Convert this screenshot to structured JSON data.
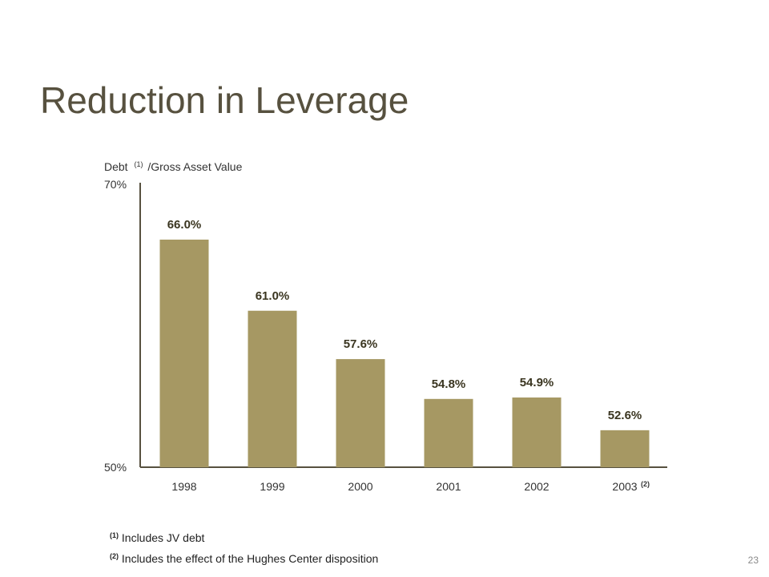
{
  "slide": {
    "title": "Reduction in Leverage",
    "page_number": "23"
  },
  "footnotes": [
    {
      "marker": "(1)",
      "text": "Includes JV debt"
    },
    {
      "marker": "(2)",
      "text": "Includes the effect of the Hughes Center disposition"
    }
  ],
  "colors": {
    "bar": "#a69863",
    "title": "#57513f",
    "axis": "#57513f"
  },
  "chart_data": {
    "type": "bar",
    "title": "",
    "ylabel": {
      "before": "Debt",
      "marker": "(1)",
      "after": "/Gross Asset Value"
    },
    "xlabel": "",
    "ylim": [
      50,
      70
    ],
    "ytick_labels": [
      "70%",
      "50%"
    ],
    "categories": [
      "1998",
      "1999",
      "2000",
      "2001",
      "2002",
      "2003"
    ],
    "category_markers": [
      "",
      "",
      "",
      "",
      "",
      "(2)"
    ],
    "values": [
      66.0,
      61.0,
      57.6,
      54.8,
      54.9,
      52.6
    ],
    "data_labels": [
      "66.0%",
      "61.0%",
      "57.6%",
      "54.8%",
      "54.9%",
      "52.6%"
    ],
    "grid": false,
    "legend": "none"
  }
}
